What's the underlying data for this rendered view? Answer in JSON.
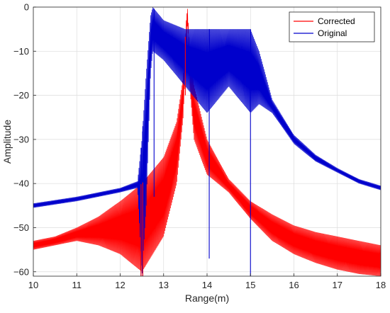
{
  "chart_data": {
    "type": "line",
    "title": "",
    "xlabel": "Range(m)",
    "ylabel": "Amplitude",
    "xlim": [
      10,
      18
    ],
    "ylim": [
      -61,
      0
    ],
    "xticks": [
      10,
      11,
      12,
      13,
      14,
      15,
      16,
      17,
      18
    ],
    "xtick_labels": [
      "10",
      "11",
      "12",
      "13",
      "14",
      "15",
      "16",
      "17",
      "18"
    ],
    "yticks": [
      0,
      -10,
      -20,
      -30,
      -40,
      -50,
      -60
    ],
    "ytick_labels": [
      "0",
      "−10",
      "−20",
      "−30",
      "−40",
      "−50",
      "−60"
    ],
    "grid": true,
    "legend_position": "top-right",
    "series": [
      {
        "name": "Corrected",
        "color": "#ff0000",
        "style": "oscillating band between upper and lower envelopes",
        "x": [
          10.0,
          10.5,
          11.0,
          11.5,
          12.0,
          12.5,
          13.0,
          13.3,
          13.45,
          13.52,
          13.55,
          13.6,
          13.7,
          14.0,
          14.5,
          15.0,
          15.5,
          16.0,
          16.5,
          17.0,
          17.5,
          18.0
        ],
        "upper": [
          -53.0,
          -52.0,
          -50.0,
          -47.5,
          -44.0,
          -40.0,
          -34.0,
          -26.0,
          -16.0,
          -3.0,
          0.0,
          -10.0,
          -18.0,
          -30.0,
          -39.0,
          -44.0,
          -47.0,
          -49.5,
          -51.0,
          -52.0,
          -53.0,
          -54.0
        ],
        "lower": [
          -55.0,
          -54.0,
          -53.0,
          -54.0,
          -56.0,
          -60.0,
          -52.0,
          -40.0,
          -25.0,
          -10.0,
          -3.0,
          -18.0,
          -30.0,
          -38.0,
          -42.0,
          -48.0,
          -53.0,
          -56.0,
          -58.0,
          -59.5,
          -60.5,
          -61.0
        ]
      },
      {
        "name": "Original",
        "color": "#0000cc",
        "style": "oscillating band between upper and lower envelopes",
        "x": [
          10.0,
          11.0,
          12.0,
          12.4,
          12.5,
          12.6,
          12.7,
          12.75,
          13.0,
          13.5,
          14.0,
          14.5,
          15.0,
          15.2,
          15.5,
          16.0,
          16.5,
          17.0,
          17.5,
          18.0
        ],
        "upper": [
          -44.5,
          -43.0,
          -41.0,
          -39.5,
          -30.0,
          -15.0,
          -2.0,
          0.0,
          -3.0,
          -5.0,
          -5.0,
          -5.0,
          -5.0,
          -10.0,
          -21.0,
          -29.0,
          -33.5,
          -36.5,
          -39.0,
          -40.5
        ],
        "lower": [
          -45.5,
          -44.0,
          -42.0,
          -41.0,
          -61.0,
          -45.0,
          -15.0,
          -10.0,
          -12.0,
          -18.0,
          -24.0,
          -18.0,
          -24.0,
          -22.0,
          -24.0,
          -31.0,
          -35.0,
          -37.5,
          -40.0,
          -41.5
        ]
      }
    ],
    "deep_dips": [
      {
        "series": "Original",
        "x": [
          12.48,
          12.52,
          12.78,
          14.05,
          15.0
        ],
        "y": [
          -61,
          -61,
          -43,
          -57,
          -61
        ]
      },
      {
        "series": "Corrected",
        "x": [
          12.48,
          12.52,
          13.5
        ],
        "y": [
          -61,
          -61,
          -20
        ]
      }
    ]
  }
}
